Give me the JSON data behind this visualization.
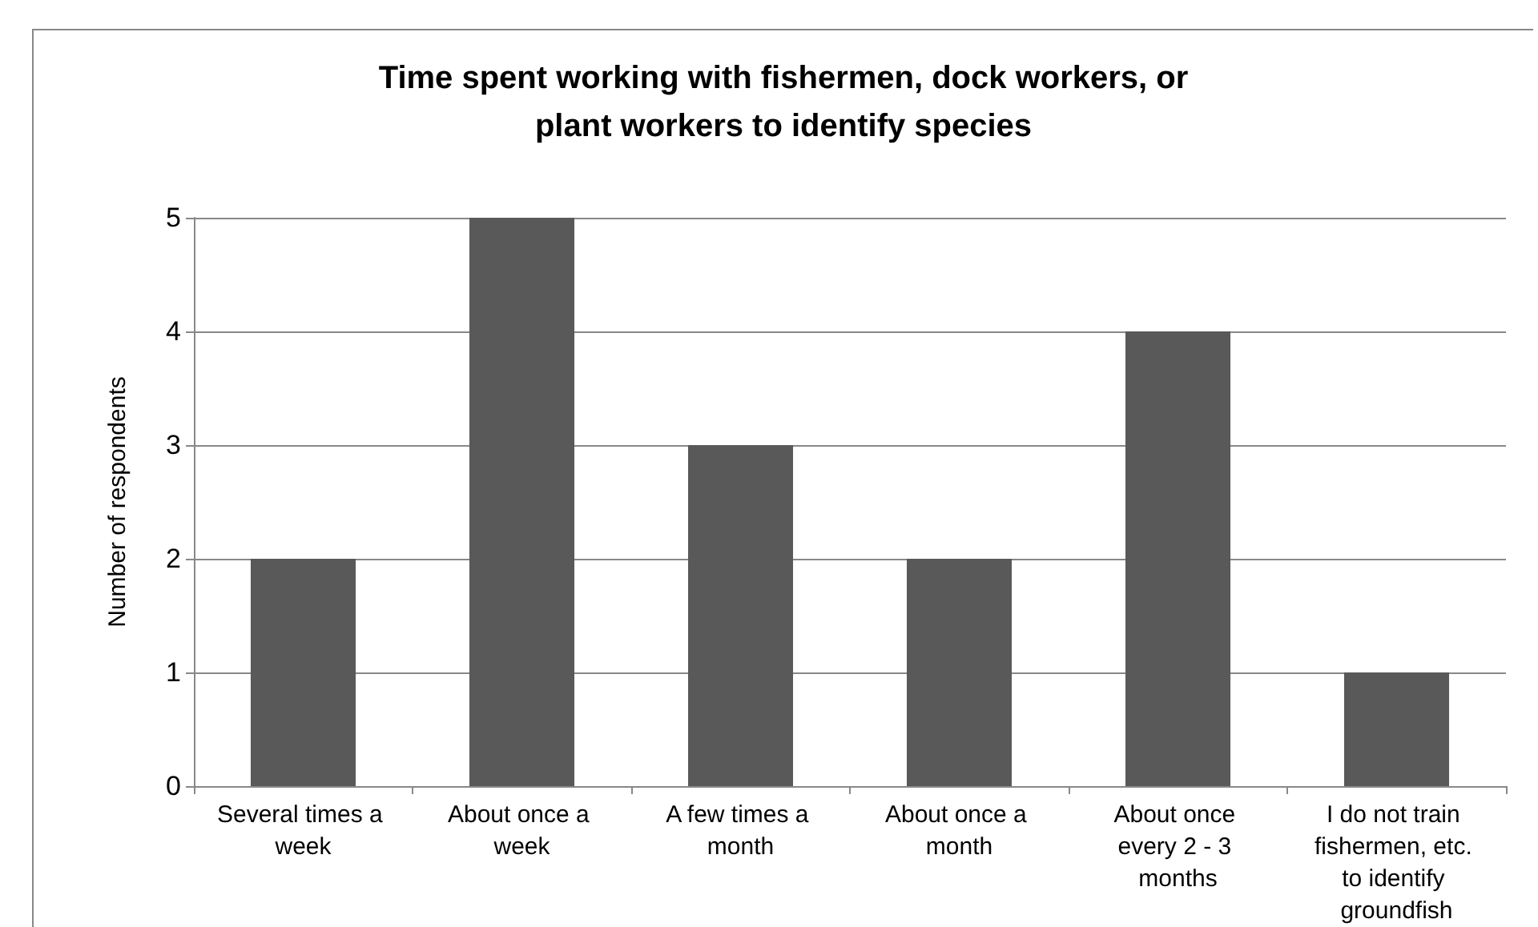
{
  "chart_data": {
    "type": "bar",
    "title": "Time spent working with fishermen, dock workers, or\nplant workers to identify species",
    "ylabel": "Number of respondents",
    "categories": [
      "Several times a week",
      "About once a week",
      "A few times a month",
      "About once a month",
      "About once every 2 - 3 months",
      "I do not train fishermen, etc. to identify groundfish"
    ],
    "values": [
      2,
      5,
      3,
      2,
      4,
      1
    ],
    "color": "#595959",
    "ylim": [
      0,
      5
    ],
    "yticks": [
      0,
      1,
      2,
      3,
      4,
      5
    ],
    "grid": "y"
  }
}
